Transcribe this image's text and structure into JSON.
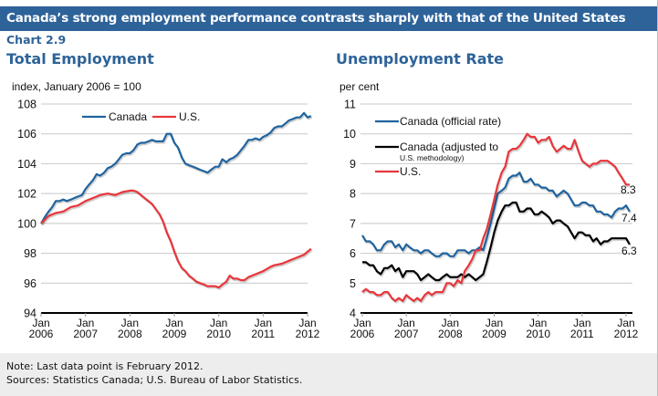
{
  "header": {
    "banner": "Canada’s strong employment performance contrasts sharply with that of the United States",
    "chart_number": "Chart 2.9"
  },
  "footer": {
    "note": "Note: Last data point is February 2012.",
    "sources": "Sources: Statistics Canada; U.S. Bureau of Labor Statistics."
  },
  "colors": {
    "canada": "#1f64a0",
    "us": "#e8363b",
    "canada_adjusted": "#000000",
    "banner": "#2e6399"
  },
  "chart_data": [
    {
      "type": "line",
      "title": "Total Employment",
      "ylabel": "index, January 2006 = 100",
      "xlabel": "",
      "ylim": [
        94,
        108
      ],
      "yticks": [
        94,
        96,
        98,
        100,
        102,
        104,
        106,
        108
      ],
      "xlim": [
        2006.0,
        2012.17
      ],
      "xticks": [
        {
          "x": 2006,
          "l1": "Jan",
          "l2": "2006"
        },
        {
          "x": 2007,
          "l1": "Jan",
          "l2": "2007"
        },
        {
          "x": 2008,
          "l1": "Jan",
          "l2": "2008"
        },
        {
          "x": 2009,
          "l1": "Jan",
          "l2": "2009"
        },
        {
          "x": 2010,
          "l1": "Jan",
          "l2": "2010"
        },
        {
          "x": 2011,
          "l1": "Jan",
          "l2": "2011"
        },
        {
          "x": 2012,
          "l1": "Jan",
          "l2": "2012"
        }
      ],
      "grid": true,
      "legend": "top-center",
      "series": [
        {
          "name": "Canada",
          "color": "#1f64a0",
          "x": [
            2006.0,
            2006.08,
            2006.17,
            2006.25,
            2006.33,
            2006.42,
            2006.5,
            2006.58,
            2006.67,
            2006.75,
            2006.83,
            2006.92,
            2007.0,
            2007.08,
            2007.17,
            2007.25,
            2007.33,
            2007.42,
            2007.5,
            2007.58,
            2007.67,
            2007.75,
            2007.83,
            2007.92,
            2008.0,
            2008.08,
            2008.17,
            2008.25,
            2008.33,
            2008.42,
            2008.5,
            2008.58,
            2008.67,
            2008.75,
            2008.83,
            2008.92,
            2009.0,
            2009.08,
            2009.17,
            2009.25,
            2009.33,
            2009.42,
            2009.5,
            2009.58,
            2009.67,
            2009.75,
            2009.83,
            2009.92,
            2010.0,
            2010.08,
            2010.17,
            2010.25,
            2010.33,
            2010.42,
            2010.5,
            2010.58,
            2010.67,
            2010.75,
            2010.83,
            2010.92,
            2011.0,
            2011.08,
            2011.17,
            2011.25,
            2011.33,
            2011.42,
            2011.5,
            2011.58,
            2011.67,
            2011.75,
            2011.83,
            2011.92,
            2012.0,
            2012.08
          ],
          "values": [
            100.0,
            100.4,
            100.8,
            101.1,
            101.5,
            101.5,
            101.6,
            101.5,
            101.6,
            101.7,
            101.8,
            101.9,
            102.3,
            102.6,
            102.9,
            103.3,
            103.2,
            103.4,
            103.7,
            103.8,
            104.0,
            104.3,
            104.6,
            104.7,
            104.7,
            104.9,
            105.3,
            105.4,
            105.4,
            105.5,
            105.6,
            105.5,
            105.5,
            105.5,
            106.0,
            106.0,
            105.4,
            105.1,
            104.4,
            104.0,
            103.9,
            103.8,
            103.7,
            103.6,
            103.5,
            103.4,
            103.6,
            103.8,
            103.8,
            104.3,
            104.1,
            104.3,
            104.4,
            104.6,
            104.9,
            105.2,
            105.6,
            105.6,
            105.7,
            105.6,
            105.8,
            105.9,
            106.1,
            106.4,
            106.5,
            106.5,
            106.7,
            106.9,
            107.0,
            107.1,
            107.1,
            107.4,
            107.1,
            107.2
          ]
        },
        {
          "name": "U.S.",
          "color": "#e8363b",
          "x": [
            2006.0,
            2006.17,
            2006.33,
            2006.5,
            2006.67,
            2006.83,
            2007.0,
            2007.17,
            2007.33,
            2007.5,
            2007.67,
            2007.83,
            2008.0,
            2008.08,
            2008.17,
            2008.33,
            2008.5,
            2008.67,
            2008.75,
            2008.83,
            2008.92,
            2009.0,
            2009.08,
            2009.17,
            2009.25,
            2009.33,
            2009.42,
            2009.5,
            2009.58,
            2009.67,
            2009.75,
            2009.83,
            2009.92,
            2010.0,
            2010.08,
            2010.17,
            2010.25,
            2010.33,
            2010.42,
            2010.5,
            2010.58,
            2010.67,
            2010.83,
            2011.0,
            2011.17,
            2011.25,
            2011.42,
            2011.58,
            2011.75,
            2011.92,
            2012.0,
            2012.08
          ],
          "values": [
            100.0,
            100.5,
            100.7,
            100.8,
            101.1,
            101.2,
            101.5,
            101.7,
            101.9,
            102.0,
            101.9,
            102.1,
            102.2,
            102.2,
            102.1,
            101.7,
            101.3,
            100.6,
            100.1,
            99.4,
            98.8,
            98.1,
            97.5,
            97.0,
            96.8,
            96.5,
            96.3,
            96.1,
            96.0,
            95.9,
            95.8,
            95.8,
            95.8,
            95.7,
            95.9,
            96.1,
            96.5,
            96.3,
            96.3,
            96.2,
            96.2,
            96.4,
            96.6,
            96.8,
            97.1,
            97.2,
            97.3,
            97.5,
            97.7,
            97.9,
            98.1,
            98.3
          ]
        }
      ]
    },
    {
      "type": "line",
      "title": "Unemployment Rate",
      "ylabel": "per cent",
      "xlabel": "",
      "ylim": [
        4,
        11
      ],
      "yticks": [
        4,
        5,
        6,
        7,
        8,
        9,
        10,
        11
      ],
      "xlim": [
        2006.0,
        2012.17
      ],
      "xticks": [
        {
          "x": 2006,
          "l1": "Jan",
          "l2": "2006"
        },
        {
          "x": 2007,
          "l1": "Jan",
          "l2": "2007"
        },
        {
          "x": 2008,
          "l1": "Jan",
          "l2": "2008"
        },
        {
          "x": 2009,
          "l1": "Jan",
          "l2": "2009"
        },
        {
          "x": 2010,
          "l1": "Jan",
          "l2": "2010"
        },
        {
          "x": 2011,
          "l1": "Jan",
          "l2": "2011"
        },
        {
          "x": 2012,
          "l1": "Jan",
          "l2": "2012"
        }
      ],
      "grid": true,
      "legend": "top-left",
      "annotations": [
        {
          "text": "8.3",
          "series": "U.S."
        },
        {
          "text": "7.4",
          "series": "Canada (official rate)"
        },
        {
          "text": "6.3",
          "series": "Canada (adjusted to U.S. methodology)"
        }
      ],
      "series": [
        {
          "name": "Canada (official rate)",
          "legend_label": "Canada (official rate)",
          "color": "#1f64a0",
          "x": [
            2006.0,
            2006.08,
            2006.17,
            2006.25,
            2006.33,
            2006.42,
            2006.5,
            2006.58,
            2006.67,
            2006.75,
            2006.83,
            2006.92,
            2007.0,
            2007.08,
            2007.17,
            2007.25,
            2007.33,
            2007.42,
            2007.5,
            2007.58,
            2007.67,
            2007.75,
            2007.83,
            2007.92,
            2008.0,
            2008.08,
            2008.17,
            2008.25,
            2008.33,
            2008.42,
            2008.5,
            2008.58,
            2008.67,
            2008.75,
            2008.83,
            2008.92,
            2009.0,
            2009.08,
            2009.17,
            2009.25,
            2009.33,
            2009.42,
            2009.5,
            2009.58,
            2009.67,
            2009.75,
            2009.83,
            2009.92,
            2010.0,
            2010.08,
            2010.17,
            2010.25,
            2010.33,
            2010.42,
            2010.5,
            2010.58,
            2010.67,
            2010.75,
            2010.83,
            2010.92,
            2011.0,
            2011.08,
            2011.17,
            2011.25,
            2011.33,
            2011.42,
            2011.5,
            2011.58,
            2011.67,
            2011.75,
            2011.83,
            2011.92,
            2012.0,
            2012.08
          ],
          "values": [
            6.6,
            6.4,
            6.4,
            6.3,
            6.1,
            6.1,
            6.3,
            6.4,
            6.4,
            6.2,
            6.3,
            6.1,
            6.3,
            6.2,
            6.1,
            6.1,
            6.0,
            6.1,
            6.1,
            6.0,
            5.9,
            5.9,
            6.0,
            6.0,
            5.9,
            5.9,
            6.1,
            6.1,
            6.1,
            6.0,
            6.1,
            6.1,
            6.2,
            6.1,
            6.5,
            7.0,
            7.5,
            8.0,
            8.1,
            8.2,
            8.5,
            8.6,
            8.6,
            8.7,
            8.4,
            8.4,
            8.5,
            8.3,
            8.3,
            8.2,
            8.2,
            8.1,
            8.1,
            7.9,
            8.0,
            8.1,
            8.0,
            7.8,
            7.6,
            7.6,
            7.7,
            7.7,
            7.6,
            7.6,
            7.4,
            7.4,
            7.3,
            7.3,
            7.2,
            7.4,
            7.5,
            7.5,
            7.6,
            7.4
          ]
        },
        {
          "name": "Canada (adjusted to U.S. methodology)",
          "legend_label": "Canada (adjusted to",
          "legend_label_sub": "U.S. methodology)",
          "color": "#000000",
          "x": [
            2006.0,
            2006.08,
            2006.17,
            2006.25,
            2006.33,
            2006.42,
            2006.5,
            2006.58,
            2006.67,
            2006.75,
            2006.83,
            2006.92,
            2007.0,
            2007.08,
            2007.17,
            2007.25,
            2007.33,
            2007.42,
            2007.5,
            2007.58,
            2007.67,
            2007.75,
            2007.83,
            2007.92,
            2008.0,
            2008.08,
            2008.17,
            2008.25,
            2008.33,
            2008.42,
            2008.5,
            2008.58,
            2008.67,
            2008.75,
            2008.83,
            2008.92,
            2009.0,
            2009.08,
            2009.17,
            2009.25,
            2009.33,
            2009.42,
            2009.5,
            2009.58,
            2009.67,
            2009.75,
            2009.83,
            2009.92,
            2010.0,
            2010.08,
            2010.17,
            2010.25,
            2010.33,
            2010.42,
            2010.5,
            2010.58,
            2010.67,
            2010.75,
            2010.83,
            2010.92,
            2011.0,
            2011.08,
            2011.17,
            2011.25,
            2011.33,
            2011.42,
            2011.5,
            2011.58,
            2011.67,
            2011.75,
            2011.83,
            2011.92,
            2012.0,
            2012.08
          ],
          "values": [
            5.7,
            5.7,
            5.6,
            5.6,
            5.4,
            5.3,
            5.5,
            5.5,
            5.6,
            5.4,
            5.5,
            5.2,
            5.4,
            5.4,
            5.4,
            5.3,
            5.1,
            5.2,
            5.3,
            5.2,
            5.1,
            5.1,
            5.2,
            5.3,
            5.2,
            5.2,
            5.2,
            5.3,
            5.2,
            5.3,
            5.2,
            5.1,
            5.2,
            5.3,
            5.7,
            6.2,
            6.7,
            7.1,
            7.4,
            7.6,
            7.6,
            7.7,
            7.7,
            7.4,
            7.4,
            7.5,
            7.5,
            7.3,
            7.3,
            7.4,
            7.3,
            7.2,
            7.0,
            7.1,
            7.1,
            7.0,
            6.9,
            6.7,
            6.5,
            6.7,
            6.7,
            6.6,
            6.6,
            6.4,
            6.5,
            6.3,
            6.4,
            6.4,
            6.5,
            6.5,
            6.5,
            6.5,
            6.5,
            6.3
          ]
        },
        {
          "name": "U.S.",
          "legend_label": "U.S.",
          "color": "#e8363b",
          "x": [
            2006.0,
            2006.08,
            2006.17,
            2006.25,
            2006.33,
            2006.42,
            2006.5,
            2006.58,
            2006.67,
            2006.75,
            2006.83,
            2006.92,
            2007.0,
            2007.08,
            2007.17,
            2007.25,
            2007.33,
            2007.42,
            2007.5,
            2007.58,
            2007.67,
            2007.75,
            2007.83,
            2007.92,
            2008.0,
            2008.08,
            2008.17,
            2008.25,
            2008.33,
            2008.42,
            2008.5,
            2008.58,
            2008.67,
            2008.75,
            2008.83,
            2008.92,
            2009.0,
            2009.08,
            2009.17,
            2009.25,
            2009.33,
            2009.42,
            2009.5,
            2009.58,
            2009.67,
            2009.75,
            2009.83,
            2009.92,
            2010.0,
            2010.08,
            2010.17,
            2010.25,
            2010.33,
            2010.42,
            2010.5,
            2010.58,
            2010.67,
            2010.75,
            2010.83,
            2010.92,
            2011.0,
            2011.08,
            2011.17,
            2011.25,
            2011.33,
            2011.42,
            2011.5,
            2011.58,
            2011.67,
            2011.75,
            2011.83,
            2011.92,
            2012.0,
            2012.08
          ],
          "values": [
            4.7,
            4.8,
            4.7,
            4.7,
            4.6,
            4.6,
            4.7,
            4.7,
            4.5,
            4.4,
            4.5,
            4.4,
            4.6,
            4.5,
            4.4,
            4.5,
            4.4,
            4.6,
            4.7,
            4.6,
            4.7,
            4.7,
            4.7,
            5.0,
            5.0,
            4.9,
            5.1,
            5.0,
            5.4,
            5.6,
            5.8,
            6.1,
            6.1,
            6.5,
            6.8,
            7.3,
            7.8,
            8.3,
            8.7,
            8.9,
            9.4,
            9.5,
            9.5,
            9.6,
            9.8,
            10.0,
            9.9,
            9.9,
            9.7,
            9.8,
            9.8,
            9.9,
            9.6,
            9.4,
            9.5,
            9.6,
            9.5,
            9.5,
            9.8,
            9.4,
            9.1,
            9.0,
            8.9,
            9.0,
            9.0,
            9.1,
            9.1,
            9.1,
            9.0,
            8.9,
            8.7,
            8.5,
            8.3,
            8.3
          ]
        }
      ]
    }
  ]
}
